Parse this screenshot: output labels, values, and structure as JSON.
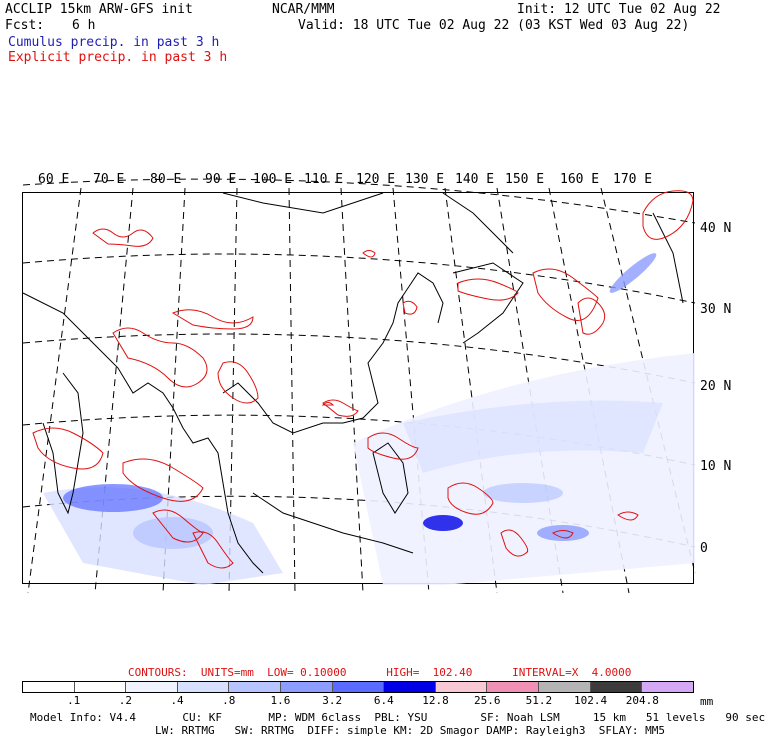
{
  "header": {
    "model_line": "ACCLIP 15km ARW-GFS init",
    "fcst_label": "Fcst:",
    "fcst_value": "6 h",
    "center": "NCAR/MMM",
    "init": "Init: 12 UTC Tue 02 Aug 22",
    "valid": "Valid: 18 UTC Tue 02 Aug 22 (03 KST Wed 03 Aug 22)",
    "legend_cumulus": "Cumulus precip. in past 3 h",
    "legend_explicit": "Explicit precip. in past 3 h"
  },
  "map": {
    "lon_labels": [
      "60 E",
      "70 E",
      "80 E",
      "90 E",
      "100 E",
      "110 E",
      "120 E",
      "130 E",
      "140 E",
      "150 E",
      "160 E",
      "170 E"
    ],
    "lat_labels": [
      "40 N",
      "30 N",
      "20 N",
      "10 N",
      "0"
    ]
  },
  "contours": {
    "text": "CONTOURS:  UNITS=mm  LOW= 0.10000      HIGH=  102.40      INTERVAL=X  4.0000"
  },
  "colorbar": {
    "levels": [
      ".1",
      ".2",
      ".4",
      ".8",
      "1.6",
      "3.2",
      "6.4",
      "12.8",
      "25.6",
      "51.2",
      "102.4",
      "204.8"
    ],
    "units": "mm",
    "colors": [
      "#ffffff",
      "#ffffff",
      "#f0f4ff",
      "#d8e0ff",
      "#b8c4ff",
      "#8c9cff",
      "#5a6cff",
      "#0000e6",
      "#f8c8d4",
      "#f090b4",
      "#b4b4b4",
      "#3c3c3c",
      "#d4a8f4"
    ]
  },
  "footer": {
    "line1": "Model Info: V4.4       CU: KF       MP: WDM 6class  PBL: YSU        SF: Noah LSM     15 km   51 levels   90 sec",
    "line2": "LW: RRTMG   SW: RRTMG  DIFF: simple KM: 2D Smagor DAMP: Rayleigh3  SFLAY: MM5"
  }
}
